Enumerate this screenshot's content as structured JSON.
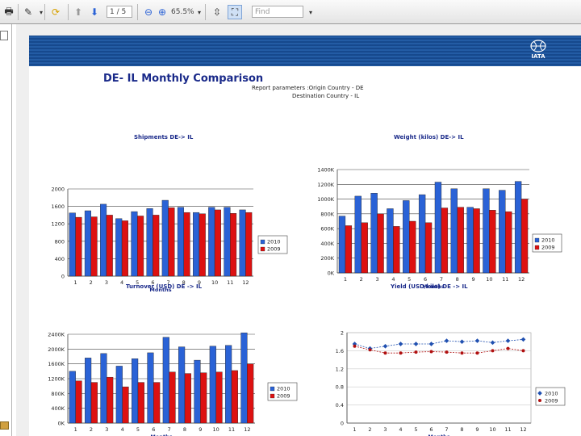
{
  "toolbar": {
    "page_value": "1 / 5",
    "zoom_value": "65.5%",
    "find_placeholder": "Find"
  },
  "report": {
    "banner_logo": "IATA",
    "title": "DE- IL Monthly Comparison",
    "params_line1": "Report parameters :Origin Country - DE",
    "params_line2": "Destination Country - IL"
  },
  "colors": {
    "series2010": "#2a62d6",
    "series2009": "#dd1111",
    "grid": "#555555"
  },
  "chart_data": [
    {
      "type": "bar",
      "title": "Shipments DE-> IL",
      "xlabel": "Months",
      "categories": [
        "1",
        "2",
        "3",
        "4",
        "5",
        "6",
        "7",
        "8",
        "9",
        "10",
        "11",
        "12"
      ],
      "yticks": [
        "0",
        "400",
        "800",
        "1200",
        "1600",
        "2000"
      ],
      "ylim": [
        0,
        2000
      ],
      "series": [
        {
          "name": "2010",
          "values": [
            1450,
            1500,
            1650,
            1320,
            1480,
            1550,
            1740,
            1580,
            1460,
            1580,
            1580,
            1520
          ]
        },
        {
          "name": "2009",
          "values": [
            1350,
            1360,
            1400,
            1270,
            1380,
            1400,
            1570,
            1460,
            1430,
            1520,
            1440,
            1460
          ]
        }
      ]
    },
    {
      "type": "bar",
      "title": "Weight (kilos) DE-> IL",
      "xlabel": "Months",
      "categories": [
        "1",
        "2",
        "3",
        "4",
        "5",
        "6",
        "7",
        "8",
        "9",
        "10",
        "11",
        "12"
      ],
      "yticks": [
        "0K",
        "200K",
        "400K",
        "600K",
        "800K",
        "1000K",
        "1200K",
        "1400K"
      ],
      "ylim": [
        0,
        1400
      ],
      "series": [
        {
          "name": "2010",
          "values": [
            770,
            1040,
            1080,
            870,
            980,
            1060,
            1230,
            1140,
            890,
            1140,
            1120,
            1240
          ]
        },
        {
          "name": "2009",
          "values": [
            640,
            680,
            800,
            630,
            700,
            680,
            880,
            890,
            870,
            850,
            830,
            1000
          ]
        }
      ]
    },
    {
      "type": "bar",
      "title": "Turnover (USD) DE -> IL",
      "xlabel": "Months",
      "categories": [
        "1",
        "2",
        "3",
        "4",
        "5",
        "6",
        "7",
        "8",
        "9",
        "10",
        "11",
        "12"
      ],
      "yticks": [
        "0K",
        "400K",
        "800K",
        "1200K",
        "1600K",
        "2000K",
        "2400K"
      ],
      "ylim": [
        0,
        2400
      ],
      "series": [
        {
          "name": "2010",
          "values": [
            1400,
            1760,
            1880,
            1540,
            1740,
            1900,
            2320,
            2060,
            1700,
            2080,
            2100,
            2440
          ]
        },
        {
          "name": "2009",
          "values": [
            1140,
            1100,
            1240,
            980,
            1100,
            1100,
            1380,
            1340,
            1360,
            1380,
            1420,
            1600
          ]
        }
      ]
    },
    {
      "type": "line",
      "title": "Yield (USD/kilo) DE -> IL",
      "xlabel": "Months",
      "categories": [
        "1",
        "2",
        "3",
        "4",
        "5",
        "6",
        "7",
        "8",
        "9",
        "10",
        "11",
        "12"
      ],
      "yticks": [
        "0",
        "0.4",
        "0.8",
        "1.2",
        "1.6",
        "2"
      ],
      "ylim": [
        0,
        2
      ],
      "series": [
        {
          "name": "2010",
          "values": [
            1.75,
            1.65,
            1.7,
            1.75,
            1.75,
            1.75,
            1.82,
            1.8,
            1.82,
            1.78,
            1.82,
            1.85
          ]
        },
        {
          "name": "2009",
          "values": [
            1.7,
            1.62,
            1.55,
            1.55,
            1.57,
            1.58,
            1.57,
            1.55,
            1.55,
            1.6,
            1.65,
            1.6
          ]
        }
      ]
    }
  ]
}
